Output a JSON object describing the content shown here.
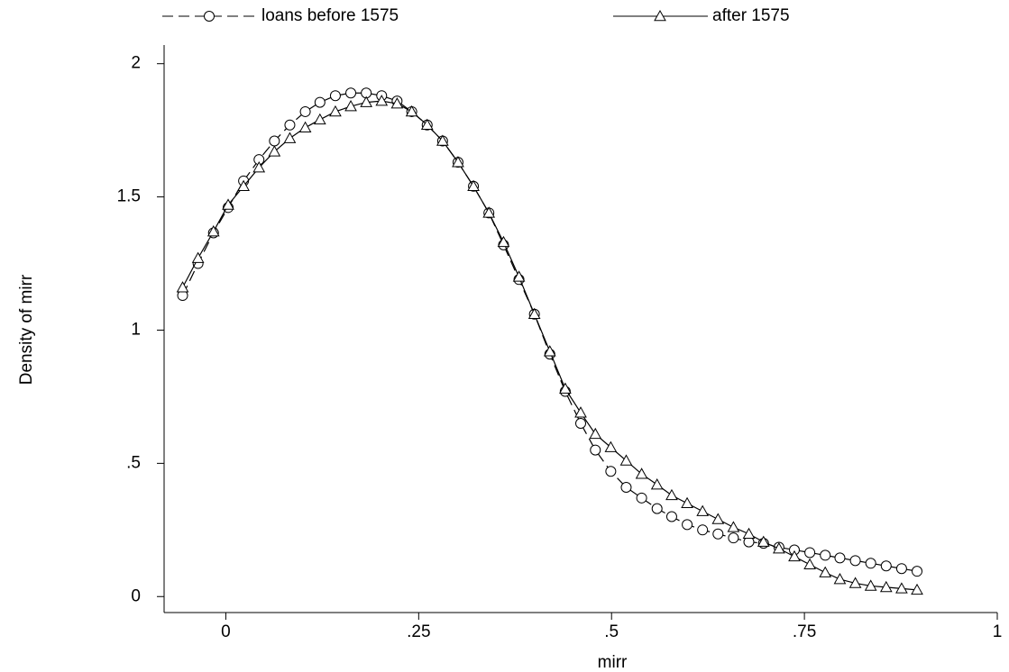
{
  "chart_data": {
    "type": "line",
    "x_label": "mirr",
    "y_label": "Density of mirr",
    "x": [
      -0.056,
      -0.036,
      -0.016,
      0.003,
      0.023,
      0.043,
      0.063,
      0.083,
      0.103,
      0.122,
      0.142,
      0.162,
      0.182,
      0.202,
      0.222,
      0.241,
      0.261,
      0.281,
      0.301,
      0.321,
      0.341,
      0.36,
      0.38,
      0.4,
      0.42,
      0.44,
      0.46,
      0.479,
      0.499,
      0.519,
      0.539,
      0.559,
      0.578,
      0.598,
      0.618,
      0.638,
      0.658,
      0.678,
      0.697,
      0.717,
      0.737,
      0.757,
      0.777,
      0.796,
      0.816,
      0.836,
      0.856,
      0.876,
      0.896
    ],
    "series": [
      {
        "name": "loans before 1575",
        "color": "#000000",
        "marker": "circle",
        "dash": true,
        "values": [
          1.13,
          1.25,
          1.365,
          1.46,
          1.56,
          1.64,
          1.71,
          1.77,
          1.82,
          1.855,
          1.88,
          1.89,
          1.89,
          1.88,
          1.86,
          1.82,
          1.77,
          1.71,
          1.63,
          1.54,
          1.44,
          1.32,
          1.19,
          1.06,
          0.91,
          0.77,
          0.65,
          0.55,
          0.47,
          0.41,
          0.37,
          0.33,
          0.3,
          0.27,
          0.25,
          0.235,
          0.22,
          0.205,
          0.2,
          0.185,
          0.175,
          0.165,
          0.155,
          0.145,
          0.135,
          0.125,
          0.115,
          0.105,
          0.095
        ]
      },
      {
        "name": "after 1575",
        "color": "#000000",
        "marker": "triangle",
        "dash": false,
        "values": [
          1.16,
          1.27,
          1.37,
          1.47,
          1.54,
          1.61,
          1.67,
          1.72,
          1.76,
          1.79,
          1.82,
          1.84,
          1.855,
          1.86,
          1.85,
          1.82,
          1.77,
          1.71,
          1.63,
          1.54,
          1.44,
          1.33,
          1.2,
          1.06,
          0.92,
          0.78,
          0.69,
          0.61,
          0.56,
          0.51,
          0.46,
          0.42,
          0.38,
          0.35,
          0.32,
          0.29,
          0.26,
          0.235,
          0.205,
          0.18,
          0.15,
          0.12,
          0.09,
          0.065,
          0.05,
          0.04,
          0.035,
          0.03,
          0.025
        ]
      }
    ],
    "xlim": [
      -0.08,
      1
    ],
    "xticks": [
      0,
      {
        "value": 0.25,
        "label": ".25"
      },
      {
        "value": 0.5,
        "label": ".5"
      },
      {
        "value": 0.75,
        "label": ".75"
      },
      1
    ],
    "ylim": [
      -0.06,
      2.07
    ],
    "yticks": [
      0,
      {
        "value": 0.5,
        "label": ".5"
      },
      1,
      1.5,
      2
    ],
    "grid": false,
    "legend": "top"
  }
}
